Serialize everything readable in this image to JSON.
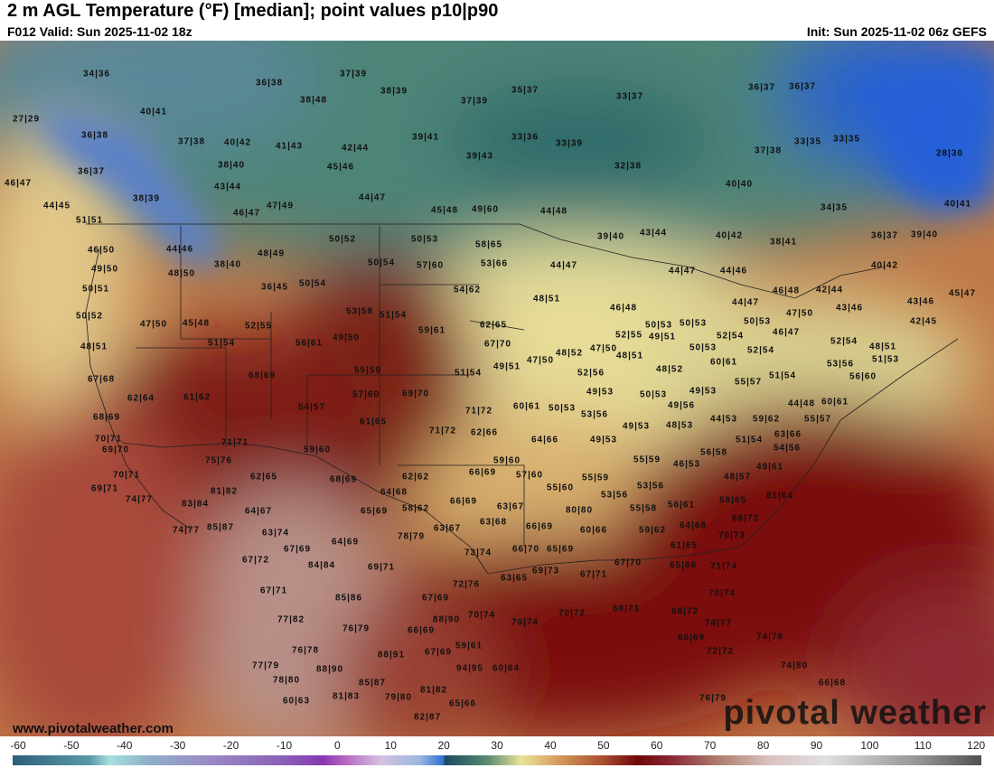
{
  "header": {
    "title": "2 m AGL Temperature (°F) [median]; point values p10|p90",
    "valid": "F012 Valid: Sun 2025-11-02 18z",
    "init": "Init: Sun 2025-11-02 06z GEFS"
  },
  "footer": {
    "website": "www.pivotalweather.com",
    "brand": "pivotal weather"
  },
  "colorbar": {
    "ticks": [
      "-60",
      "-50",
      "-40",
      "-30",
      "-20",
      "-10",
      "0",
      "10",
      "20",
      "30",
      "40",
      "50",
      "60",
      "70",
      "80",
      "90",
      "100",
      "110",
      "120"
    ]
  },
  "labels": [
    "34|36",
    "27|29",
    "36|38",
    "36|37",
    "46|47",
    "44|45",
    "51|51",
    "46|50",
    "49|50",
    "50|51",
    "50|52",
    "48|51",
    "67|68",
    "68|69",
    "70|71",
    "69|70",
    "69|71",
    "70|71",
    "74|77",
    "74|77",
    "85|87",
    "83|84",
    "81|82",
    "75|76",
    "71|71",
    "62|64",
    "61|62",
    "40|41",
    "36|38",
    "37|39",
    "38|48",
    "38|39",
    "37|38",
    "40|42",
    "41|43",
    "42|44",
    "38|40",
    "45|46",
    "43|44",
    "38|39",
    "46|47",
    "47|49",
    "44|47",
    "39|41",
    "39|43",
    "37|39",
    "35|37",
    "33|36",
    "33|39",
    "33|37",
    "32|38",
    "36|37",
    "36|37",
    "37|38",
    "33|35",
    "33|35",
    "28|30",
    "40|40",
    "34|35",
    "40|41",
    "45|48",
    "49|60",
    "44|48",
    "50|52",
    "50|53",
    "58|65",
    "44|46",
    "48|49",
    "48|50",
    "38|40",
    "50|54",
    "57|60",
    "53|66",
    "39|40",
    "43|44",
    "40|42",
    "38|41",
    "36|37",
    "39|40",
    "40|42",
    "44|47",
    "44|47",
    "44|46",
    "50|54",
    "36|45",
    "54|62",
    "48|51",
    "46|48",
    "42|44",
    "43|46",
    "45|47",
    "44|47",
    "46|48",
    "47|50",
    "43|46",
    "42|45",
    "47|50",
    "45|48",
    "52|55",
    "53|58",
    "51|54",
    "62|65",
    "50|53",
    "50|53",
    "50|53",
    "46|47",
    "51|54",
    "56|61",
    "49|50",
    "59|61",
    "67|70",
    "52|55",
    "49|51",
    "50|53",
    "52|54",
    "52|54",
    "52|54",
    "48|51",
    "48|52",
    "47|50",
    "47|50",
    "48|51",
    "49|51",
    "51|54",
    "55|59",
    "68|69",
    "60|61",
    "53|56",
    "51|53",
    "52|56",
    "48|52",
    "51|54",
    "55|57",
    "56|60",
    "57|60",
    "69|70",
    "71|72",
    "54|57",
    "60|61",
    "50|53",
    "49|53",
    "50|53",
    "49|53",
    "49|56",
    "44|48",
    "60|61",
    "61|65",
    "71|72",
    "62|66",
    "53|56",
    "49|53",
    "48|53",
    "44|53",
    "59|62",
    "55|57",
    "63|66",
    "64|66",
    "49|53",
    "51|54",
    "56|58",
    "54|56",
    "59|60",
    "59|60",
    "55|59",
    "46|53",
    "49|61",
    "62|65",
    "68|69",
    "62|62",
    "66|69",
    "57|60",
    "55|60",
    "55|59",
    "53|56",
    "53|56",
    "48|57",
    "61|64",
    "64|68",
    "66|69",
    "63|67",
    "58|62",
    "65|69",
    "64|67",
    "80|80",
    "55|58",
    "56|61",
    "58|65",
    "63|68",
    "63|67",
    "66|69",
    "60|66",
    "59|62",
    "64|68",
    "68|72",
    "63|74",
    "78|79",
    "64|69",
    "67|69",
    "73|74",
    "66|70",
    "65|69",
    "61|65",
    "70|73",
    "67|72",
    "84|84",
    "69|71",
    "63|65",
    "69|73",
    "67|71",
    "67|70",
    "65|68",
    "71|74",
    "72|76",
    "67|71",
    "85|86",
    "67|69",
    "70|74",
    "77|82",
    "88|90",
    "70|74",
    "70|74",
    "70|72",
    "69|71",
    "66|72",
    "74|77",
    "76|79",
    "66|69",
    "66|69",
    "74|78",
    "76|78",
    "88|91",
    "67|69",
    "59|61",
    "72|72",
    "77|79",
    "88|90",
    "94|95",
    "74|80",
    "78|80",
    "85|87",
    "66|68",
    "81|82",
    "60|63",
    "81|83",
    "79|80",
    "65|66",
    "76|79",
    "82|87",
    "60|64"
  ]
}
